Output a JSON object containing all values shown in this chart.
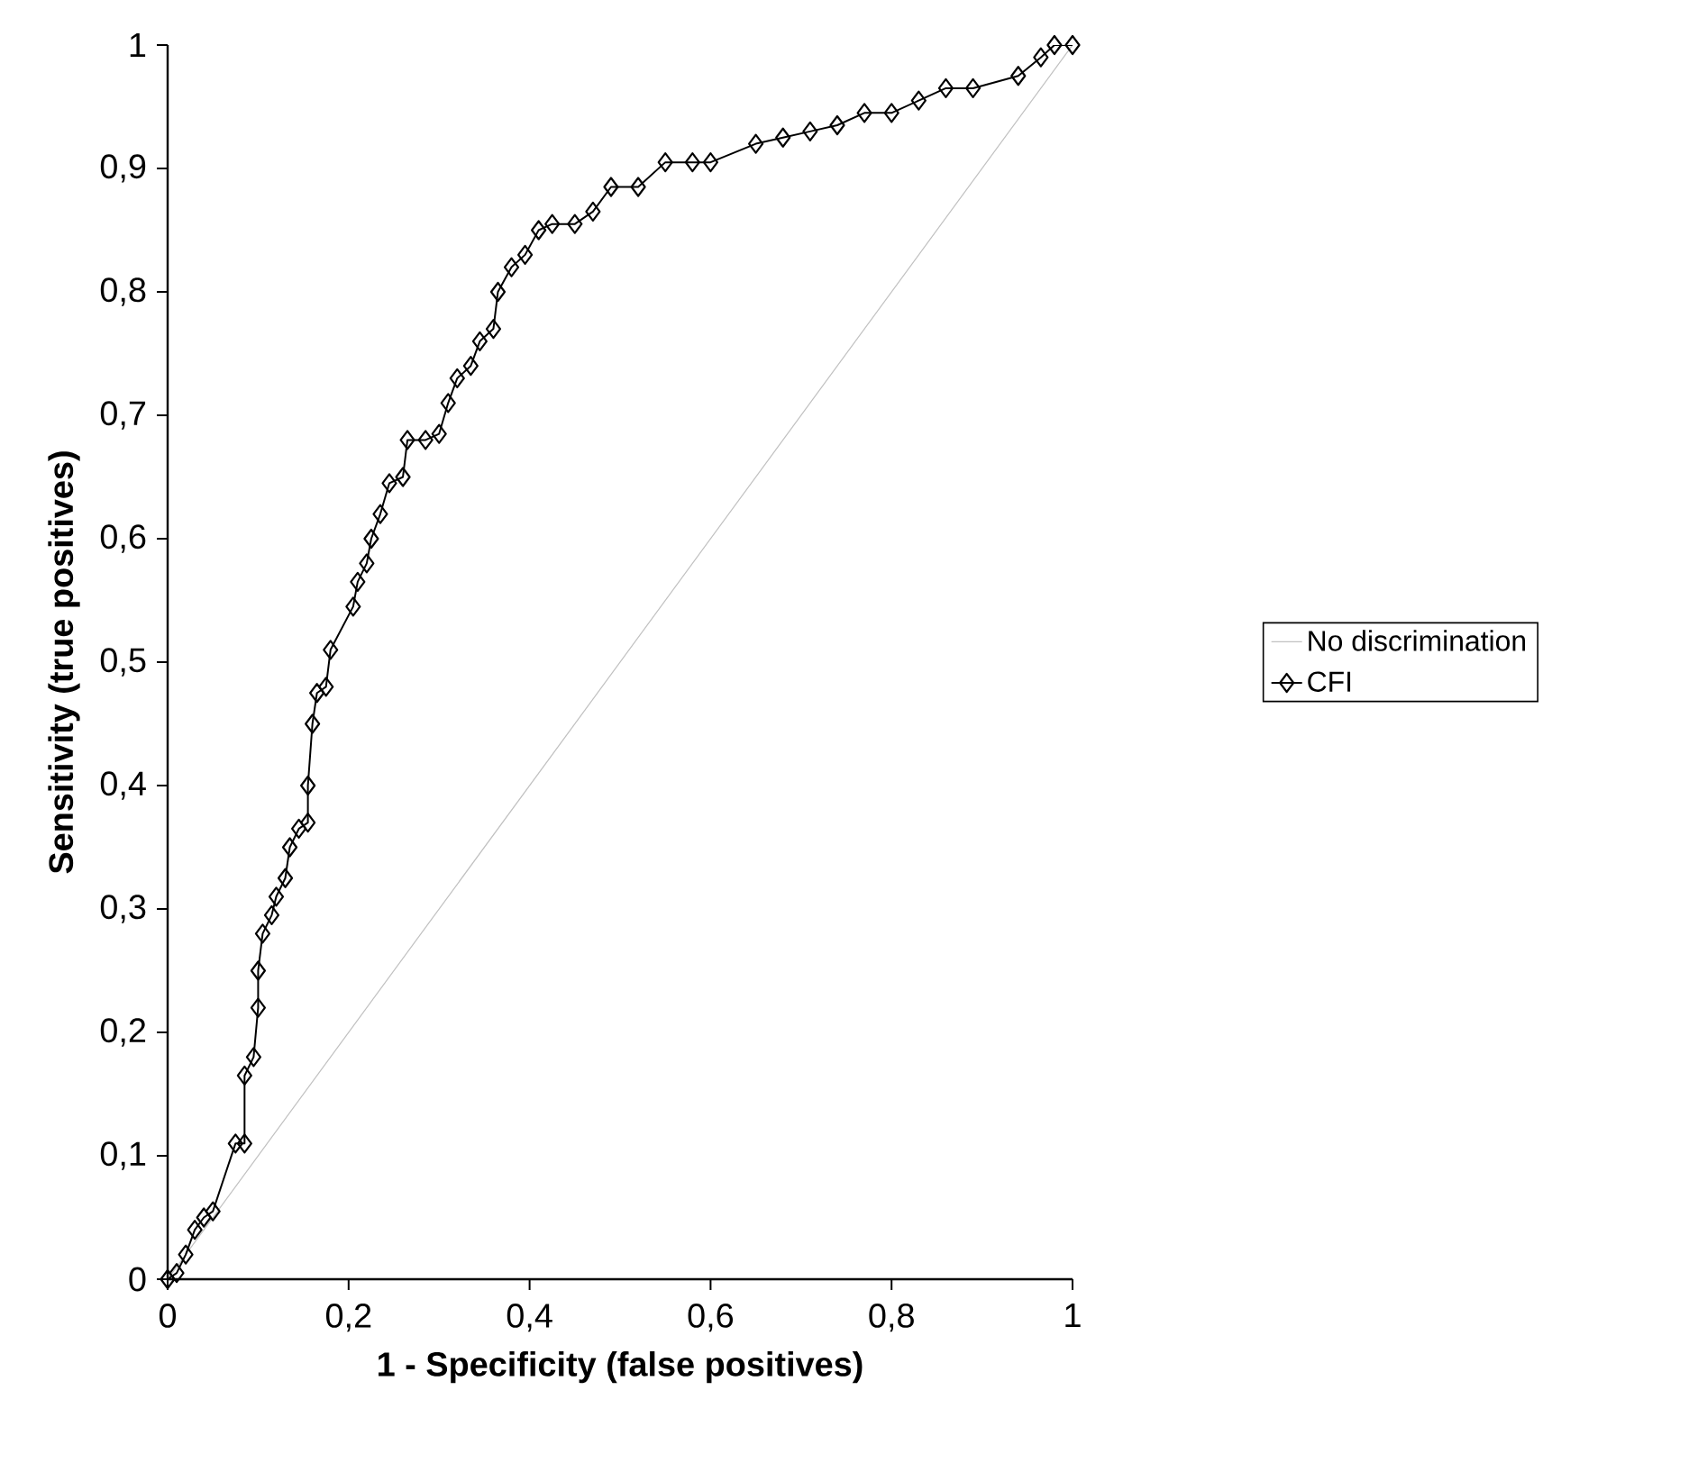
{
  "chart_data": {
    "type": "line",
    "xlabel": "1 - Specificity (false positives)",
    "ylabel": "Sensitivity (true positives)",
    "xlim": [
      0,
      1
    ],
    "ylim": [
      0,
      1
    ],
    "xticks": [
      0,
      {
        "value": 0.2,
        "label": "0,2"
      },
      {
        "value": 0.4,
        "label": "0,4"
      },
      {
        "value": 0.6,
        "label": "0,6"
      },
      {
        "value": 0.8,
        "label": "0,8"
      },
      1
    ],
    "yticks": [
      0,
      {
        "value": 0.1,
        "label": "0,1"
      },
      {
        "value": 0.2,
        "label": "0,2"
      },
      {
        "value": 0.3,
        "label": "0,3"
      },
      {
        "value": 0.4,
        "label": "0,4"
      },
      {
        "value": 0.5,
        "label": "0,5"
      },
      {
        "value": 0.6,
        "label": "0,6"
      },
      {
        "value": 0.7,
        "label": "0,7"
      },
      {
        "value": 0.8,
        "label": "0,8"
      },
      {
        "value": 0.9,
        "label": "0,9"
      },
      1
    ],
    "grid": false,
    "legend": "right",
    "series": [
      {
        "name": "No discrimination",
        "color": "#c0c0c0",
        "marker": "none",
        "x": [
          0,
          1
        ],
        "values": [
          0,
          1
        ]
      },
      {
        "name": "CFI",
        "color": "#000000",
        "marker": "diamond",
        "x": [
          0,
          0.01,
          0.02,
          0.03,
          0.04,
          0.05,
          0.075,
          0.085,
          0.085,
          0.095,
          0.1,
          0.1,
          0.105,
          0.115,
          0.12,
          0.13,
          0.135,
          0.145,
          0.155,
          0.155,
          0.16,
          0.165,
          0.175,
          0.18,
          0.205,
          0.21,
          0.22,
          0.225,
          0.235,
          0.245,
          0.26,
          0.265,
          0.285,
          0.3,
          0.31,
          0.32,
          0.335,
          0.345,
          0.36,
          0.365,
          0.38,
          0.395,
          0.41,
          0.425,
          0.45,
          0.47,
          0.49,
          0.52,
          0.55,
          0.58,
          0.6,
          0.65,
          0.68,
          0.71,
          0.74,
          0.77,
          0.8,
          0.83,
          0.86,
          0.89,
          0.94,
          0.965,
          0.98,
          1
        ],
        "values": [
          0,
          0.005,
          0.02,
          0.04,
          0.05,
          0.055,
          0.11,
          0.11,
          0.165,
          0.18,
          0.22,
          0.25,
          0.28,
          0.295,
          0.31,
          0.325,
          0.35,
          0.365,
          0.37,
          0.4,
          0.45,
          0.475,
          0.48,
          0.51,
          0.545,
          0.565,
          0.58,
          0.6,
          0.62,
          0.645,
          0.65,
          0.68,
          0.68,
          0.685,
          0.71,
          0.73,
          0.74,
          0.76,
          0.77,
          0.8,
          0.82,
          0.83,
          0.85,
          0.855,
          0.855,
          0.865,
          0.885,
          0.885,
          0.905,
          0.905,
          0.905,
          0.92,
          0.925,
          0.93,
          0.935,
          0.945,
          0.945,
          0.955,
          0.965,
          0.965,
          0.975,
          0.99,
          1,
          1
        ]
      }
    ]
  }
}
